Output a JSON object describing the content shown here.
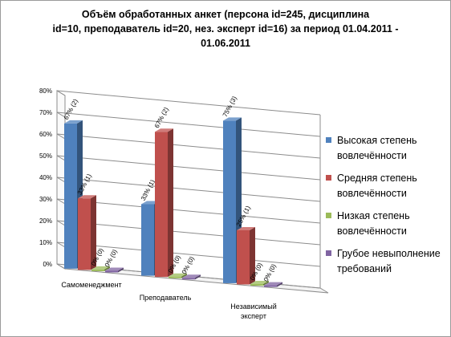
{
  "colors": {
    "blue": "#4F81BD",
    "red": "#C0504D",
    "green": "#9BBB59",
    "purple": "#8064A2"
  },
  "chart_data": {
    "type": "bar",
    "title": [
      "Объём обработанных анкет  (персона id=245, дисциплина",
      "id=10, преподаватель id=20, нез. эксперт id=16) за период 01.04.2011 -",
      "01.06.2011"
    ],
    "categories": [
      "Самоменеджмент",
      "Преподаватель",
      "Независимый эксперт"
    ],
    "ylim": [
      0,
      80
    ],
    "yticks": [
      "0%",
      "10%",
      "20%",
      "30%",
      "40%",
      "50%",
      "60%",
      "70%",
      "80%"
    ],
    "grid": true,
    "legend_position": "right",
    "series": [
      {
        "name": "Высокая степень вовлечённости",
        "color": "#4F81BD",
        "values": [
          67,
          33,
          75
        ],
        "labels": [
          "67% (2)",
          "33% (1)",
          "75% (3)"
        ]
      },
      {
        "name": "Средняя степень вовлечённости",
        "color": "#C0504D",
        "values": [
          33,
          67,
          25
        ],
        "labels": [
          "33% (1)",
          "67% (2)",
          "25% (1)"
        ]
      },
      {
        "name": "Низкая степень вовлечённости",
        "color": "#9BBB59",
        "values": [
          0,
          0,
          0
        ],
        "labels": [
          "0% (0)",
          "0% (0)",
          "0% (0)"
        ]
      },
      {
        "name": "Грубое невыполнение требований",
        "color": "#8064A2",
        "values": [
          0,
          0,
          0
        ],
        "labels": [
          "0% (0)",
          "0% (0)",
          "0% (0)"
        ]
      }
    ]
  }
}
